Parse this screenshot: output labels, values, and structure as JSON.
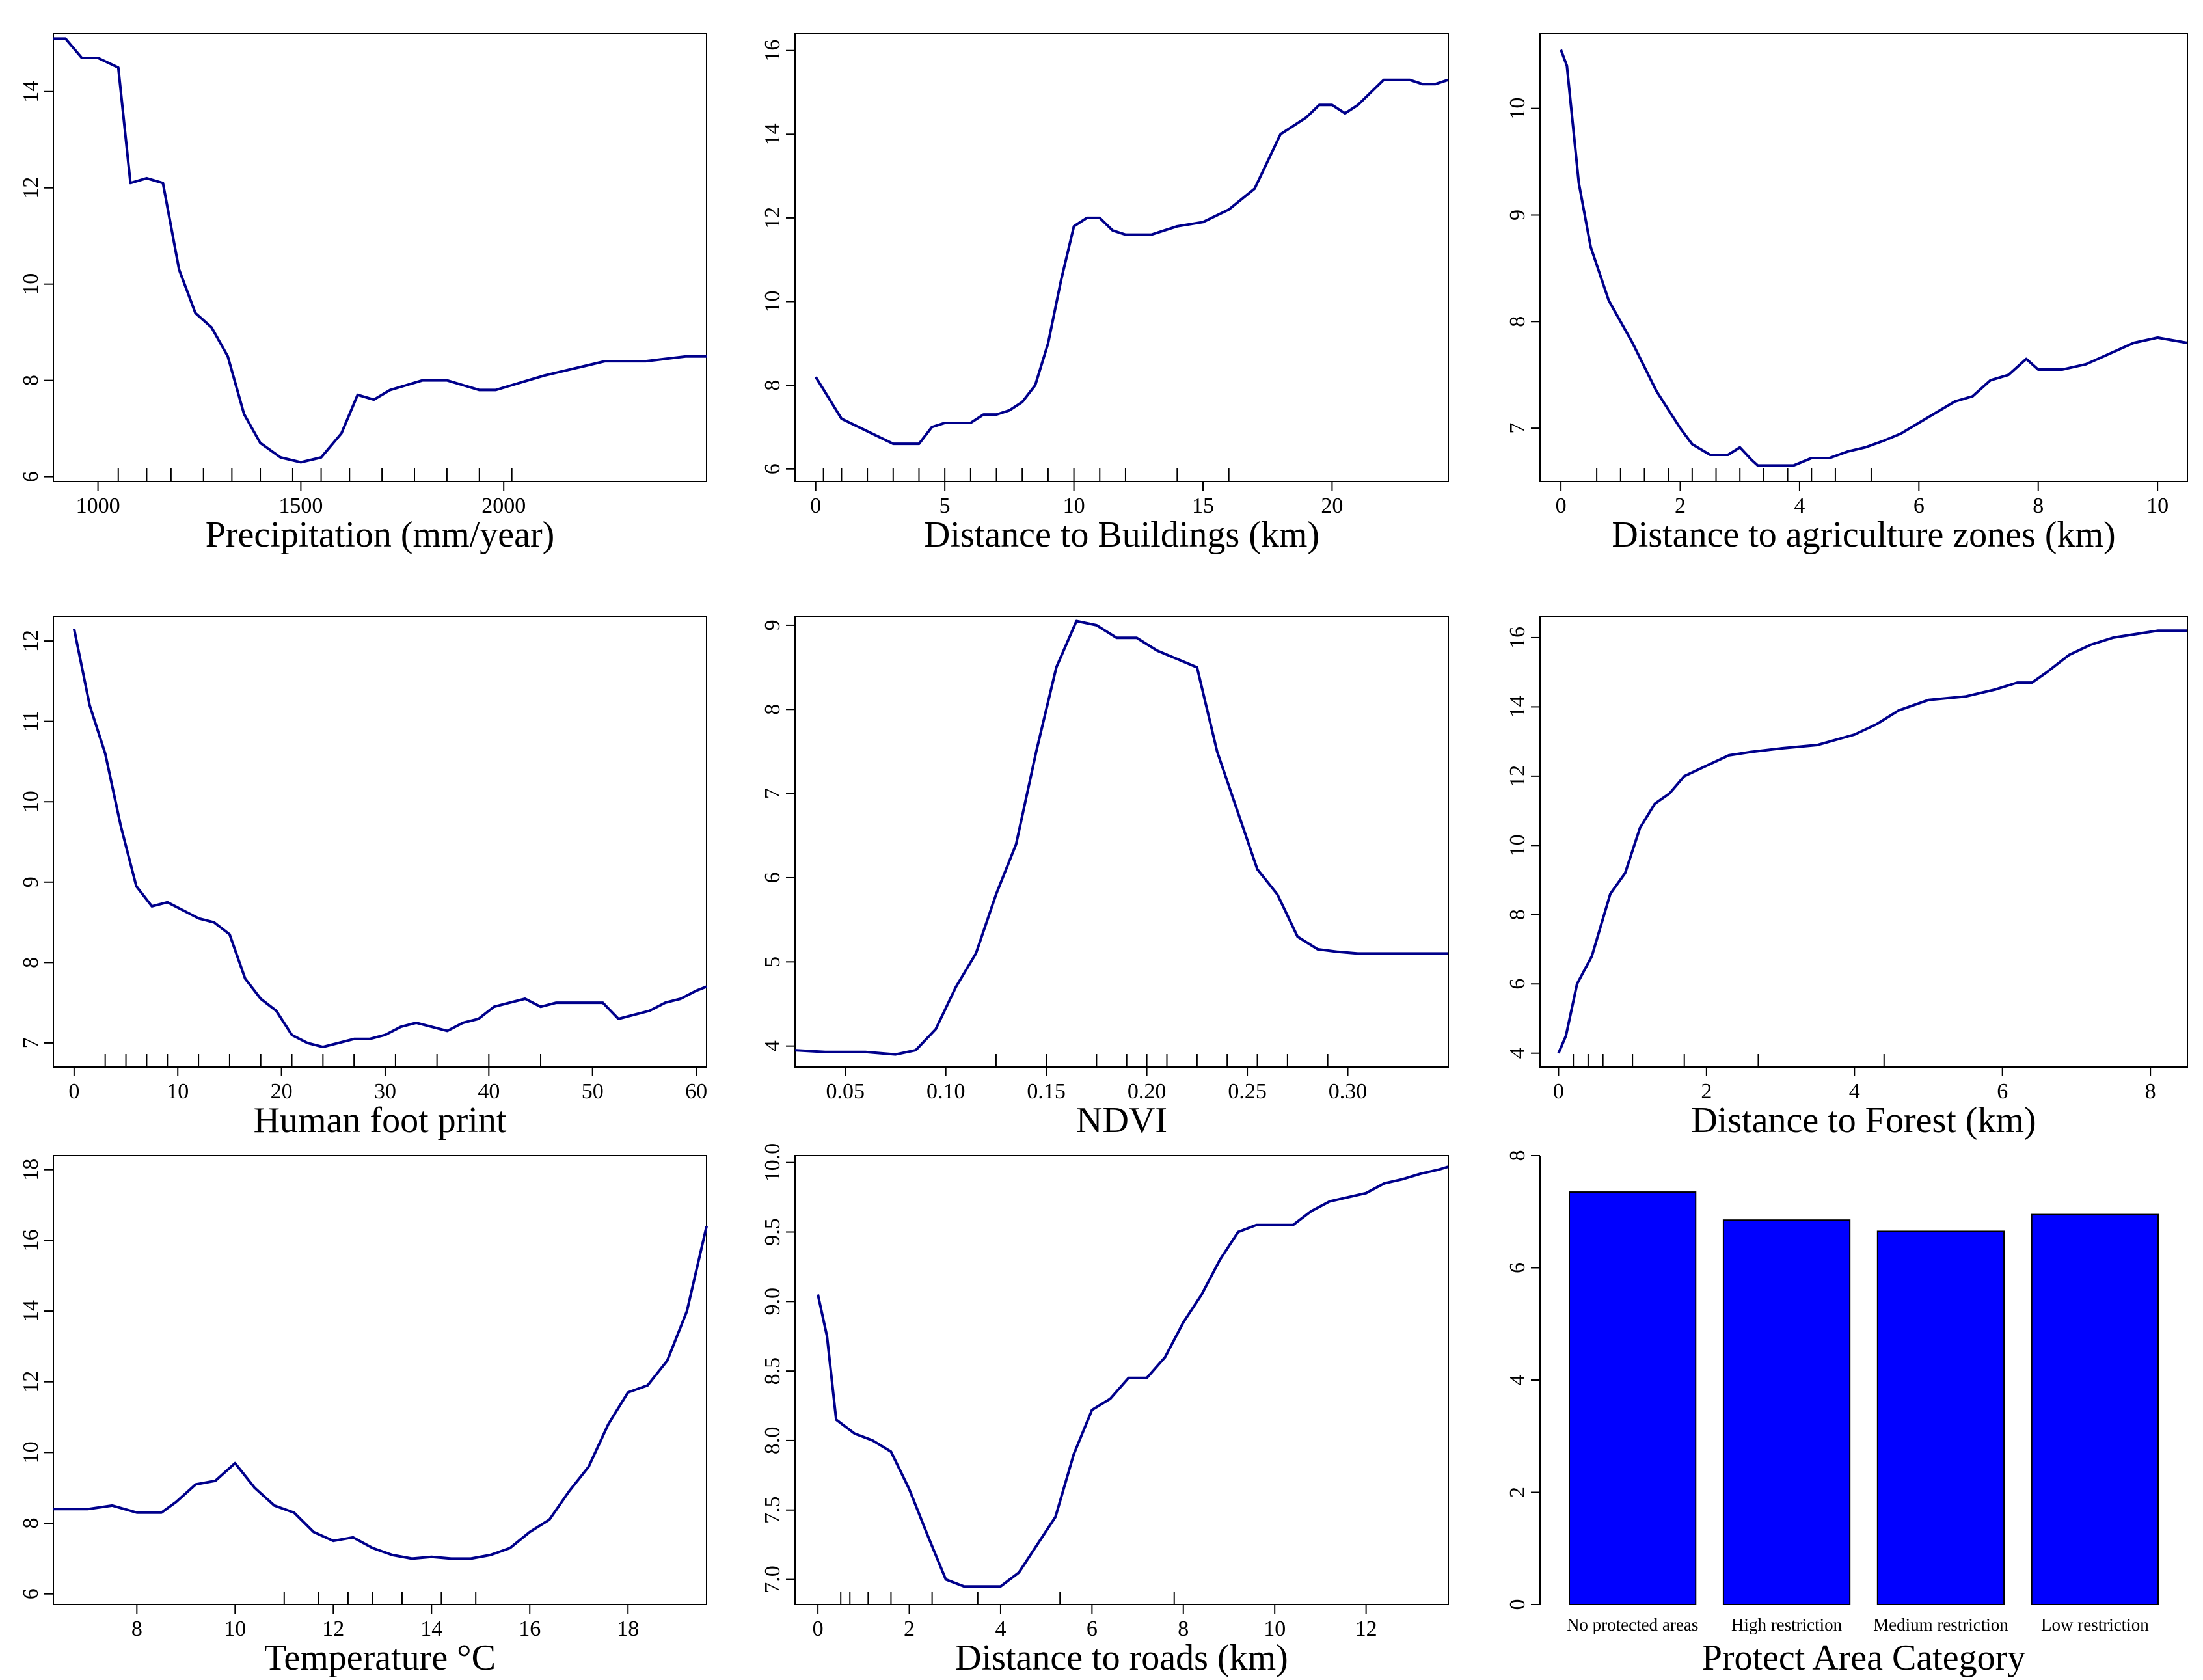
{
  "colors": {
    "line": "#00008B",
    "bar": "#0000FF",
    "axis": "#000000"
  },
  "chart_data": [
    {
      "type": "line",
      "xlabel": "Precipitation (mm/year)",
      "xlim": [
        890,
        2500
      ],
      "ylim": [
        5.9,
        15.2
      ],
      "xticks": [
        1000,
        1500,
        2000
      ],
      "yticks": [
        6,
        8,
        10,
        12,
        14
      ],
      "rug": [
        1050,
        1120,
        1180,
        1260,
        1330,
        1400,
        1480,
        1550,
        1620,
        1700,
        1780,
        1860,
        1940,
        2020
      ],
      "x": [
        890,
        920,
        960,
        1000,
        1050,
        1080,
        1120,
        1160,
        1200,
        1240,
        1280,
        1320,
        1360,
        1400,
        1450,
        1500,
        1550,
        1600,
        1640,
        1680,
        1720,
        1760,
        1800,
        1860,
        1900,
        1940,
        1980,
        2020,
        2060,
        2100,
        2150,
        2200,
        2250,
        2300,
        2350,
        2400,
        2450,
        2500
      ],
      "y": [
        15.1,
        15.1,
        14.7,
        14.7,
        14.5,
        12.1,
        12.2,
        12.1,
        10.3,
        9.4,
        9.1,
        8.5,
        7.3,
        6.7,
        6.4,
        6.3,
        6.4,
        6.9,
        7.7,
        7.6,
        7.8,
        7.9,
        8.0,
        8.0,
        7.9,
        7.8,
        7.8,
        7.9,
        8.0,
        8.1,
        8.2,
        8.3,
        8.4,
        8.4,
        8.4,
        8.45,
        8.5,
        8.5
      ]
    },
    {
      "type": "line",
      "xlabel": "Distance to Buildings (km)",
      "xlim": [
        -0.8,
        24.5
      ],
      "ylim": [
        5.7,
        16.4
      ],
      "xticks": [
        0,
        5,
        10,
        15,
        20
      ],
      "yticks": [
        6,
        8,
        10,
        12,
        14,
        16
      ],
      "rug": [
        0.3,
        1,
        2,
        3,
        4,
        5,
        6,
        7,
        8,
        9,
        10,
        11,
        12,
        14,
        16
      ],
      "x": [
        0,
        0.5,
        1,
        2,
        3,
        4,
        4.5,
        5,
        5.5,
        6,
        6.5,
        7,
        7.5,
        8,
        8.5,
        9,
        9.5,
        10,
        10.5,
        11,
        11.5,
        12,
        12.5,
        13,
        14,
        15,
        16,
        17,
        18,
        19,
        19.5,
        20,
        20.5,
        21,
        21.5,
        22,
        22.5,
        23,
        23.5,
        24,
        24.5
      ],
      "y": [
        8.2,
        7.7,
        7.2,
        6.9,
        6.6,
        6.6,
        7.0,
        7.1,
        7.1,
        7.1,
        7.3,
        7.3,
        7.4,
        7.6,
        8.0,
        9.0,
        10.5,
        11.8,
        12.0,
        12.0,
        11.7,
        11.6,
        11.6,
        11.6,
        11.8,
        11.9,
        12.2,
        12.7,
        14.0,
        14.4,
        14.7,
        14.7,
        14.5,
        14.7,
        15.0,
        15.3,
        15.3,
        15.3,
        15.2,
        15.2,
        15.3
      ]
    },
    {
      "type": "line",
      "xlabel": "Distance to agriculture zones (km)",
      "xlim": [
        -0.35,
        10.5
      ],
      "ylim": [
        6.5,
        10.7
      ],
      "xticks": [
        0,
        2,
        4,
        6,
        8,
        10
      ],
      "yticks": [
        7,
        8,
        9,
        10
      ],
      "rug": [
        0.6,
        1.0,
        1.4,
        1.8,
        2.2,
        2.6,
        3.0,
        3.4,
        3.8,
        4.2,
        4.6,
        5.2
      ],
      "x": [
        0,
        0.1,
        0.3,
        0.5,
        0.8,
        1.2,
        1.6,
        2.0,
        2.2,
        2.5,
        2.8,
        3.0,
        3.2,
        3.3,
        3.6,
        3.9,
        4.2,
        4.5,
        4.8,
        5.1,
        5.4,
        5.7,
        6.0,
        6.3,
        6.6,
        6.9,
        7.2,
        7.5,
        7.8,
        8.0,
        8.4,
        8.8,
        9.2,
        9.6,
        10.0,
        10.5
      ],
      "y": [
        10.55,
        10.4,
        9.3,
        8.7,
        8.2,
        7.8,
        7.35,
        7.0,
        6.85,
        6.75,
        6.75,
        6.82,
        6.7,
        6.65,
        6.65,
        6.65,
        6.72,
        6.72,
        6.78,
        6.82,
        6.88,
        6.95,
        7.05,
        7.15,
        7.25,
        7.3,
        7.45,
        7.5,
        7.65,
        7.55,
        7.55,
        7.6,
        7.7,
        7.8,
        7.85,
        7.8
      ]
    },
    {
      "type": "line",
      "xlabel": "Human foot print",
      "xlim": [
        -2,
        61
      ],
      "ylim": [
        6.7,
        12.3
      ],
      "xticks": [
        0,
        10,
        20,
        30,
        40,
        50,
        60
      ],
      "yticks": [
        7,
        8,
        9,
        10,
        11,
        12
      ],
      "rug": [
        3,
        5,
        7,
        9,
        12,
        15,
        18,
        21,
        24,
        27,
        31,
        35,
        40,
        45
      ],
      "x": [
        0,
        1.5,
        3,
        4.5,
        6,
        7.5,
        9,
        10.5,
        12,
        13.5,
        15,
        16.5,
        18,
        19.5,
        21,
        22.5,
        24,
        25.5,
        27,
        28.5,
        30,
        31.5,
        33,
        34.5,
        36,
        37.5,
        39,
        40.5,
        42,
        43.5,
        45,
        46.5,
        48,
        49.5,
        51,
        52.5,
        54,
        55.5,
        57,
        58.5,
        60,
        61
      ],
      "y": [
        12.15,
        11.2,
        10.6,
        9.7,
        8.95,
        8.7,
        8.75,
        8.65,
        8.55,
        8.5,
        8.35,
        7.8,
        7.55,
        7.4,
        7.1,
        7.0,
        6.95,
        7.0,
        7.05,
        7.05,
        7.1,
        7.2,
        7.25,
        7.2,
        7.15,
        7.25,
        7.3,
        7.45,
        7.5,
        7.55,
        7.45,
        7.5,
        7.5,
        7.5,
        7.5,
        7.3,
        7.35,
        7.4,
        7.5,
        7.55,
        7.65,
        7.7
      ]
    },
    {
      "type": "line",
      "xlabel": "NDVI",
      "xlim": [
        0.025,
        0.35
      ],
      "ylim": [
        3.75,
        9.1
      ],
      "xticks": [
        0.05,
        0.1,
        0.15,
        0.2,
        0.25,
        0.3
      ],
      "yticks": [
        4,
        5,
        6,
        7,
        8,
        9
      ],
      "rug": [
        0.125,
        0.15,
        0.175,
        0.19,
        0.2,
        0.21,
        0.225,
        0.24,
        0.255,
        0.27,
        0.29
      ],
      "x": [
        0.025,
        0.04,
        0.06,
        0.075,
        0.085,
        0.095,
        0.105,
        0.115,
        0.125,
        0.135,
        0.145,
        0.155,
        0.165,
        0.175,
        0.185,
        0.195,
        0.205,
        0.215,
        0.225,
        0.235,
        0.245,
        0.255,
        0.265,
        0.275,
        0.285,
        0.295,
        0.305,
        0.315,
        0.325,
        0.335,
        0.35
      ],
      "y": [
        3.95,
        3.93,
        3.93,
        3.9,
        3.95,
        4.2,
        4.7,
        5.1,
        5.8,
        6.4,
        7.5,
        8.5,
        9.05,
        9.0,
        8.85,
        8.85,
        8.7,
        8.6,
        8.5,
        7.5,
        6.8,
        6.1,
        5.8,
        5.3,
        5.15,
        5.12,
        5.1,
        5.1,
        5.1,
        5.1,
        5.1
      ]
    },
    {
      "type": "line",
      "xlabel": "Distance to Forest (km)",
      "xlim": [
        -0.25,
        8.5
      ],
      "ylim": [
        3.6,
        16.6
      ],
      "xticks": [
        0,
        2,
        4,
        6,
        8
      ],
      "yticks": [
        4,
        6,
        8,
        10,
        12,
        14,
        16
      ],
      "rug": [
        0.2,
        0.4,
        0.6,
        1.0,
        1.7,
        2.7,
        4.4
      ],
      "x": [
        0,
        0.1,
        0.25,
        0.45,
        0.7,
        0.9,
        1.1,
        1.3,
        1.5,
        1.7,
        1.9,
        2.1,
        2.3,
        2.6,
        3.0,
        3.5,
        4.0,
        4.3,
        4.6,
        5.0,
        5.5,
        5.9,
        6.2,
        6.4,
        6.6,
        6.9,
        7.2,
        7.5,
        7.8,
        8.1,
        8.5
      ],
      "y": [
        4.0,
        4.5,
        6.0,
        6.8,
        8.6,
        9.2,
        10.5,
        11.2,
        11.5,
        12.0,
        12.2,
        12.4,
        12.6,
        12.7,
        12.8,
        12.9,
        13.2,
        13.5,
        13.9,
        14.2,
        14.3,
        14.5,
        14.7,
        14.7,
        15.0,
        15.5,
        15.8,
        16.0,
        16.1,
        16.2,
        16.2
      ]
    },
    {
      "type": "line",
      "xlabel": "Temperature °C",
      "xlim": [
        6.3,
        19.6
      ],
      "ylim": [
        5.7,
        18.4
      ],
      "xticks": [
        8,
        10,
        12,
        14,
        16,
        18
      ],
      "yticks": [
        6,
        8,
        10,
        12,
        14,
        16,
        18
      ],
      "rug": [
        11.0,
        11.7,
        12.3,
        12.8,
        13.4,
        14.2,
        14.9
      ],
      "x": [
        6.3,
        7.0,
        7.5,
        8.0,
        8.5,
        8.8,
        9.2,
        9.6,
        10.0,
        10.4,
        10.8,
        11.2,
        11.6,
        12.0,
        12.4,
        12.8,
        13.2,
        13.6,
        14.0,
        14.4,
        14.8,
        15.2,
        15.6,
        16.0,
        16.4,
        16.8,
        17.2,
        17.6,
        18.0,
        18.4,
        18.8,
        19.2,
        19.6
      ],
      "y": [
        8.4,
        8.4,
        8.5,
        8.3,
        8.3,
        8.6,
        9.1,
        9.2,
        9.7,
        9.0,
        8.5,
        8.3,
        7.75,
        7.5,
        7.6,
        7.3,
        7.1,
        7.0,
        7.05,
        7.0,
        7.0,
        7.1,
        7.3,
        7.75,
        8.1,
        8.9,
        9.6,
        10.8,
        11.7,
        11.9,
        12.6,
        14.0,
        16.4
      ]
    },
    {
      "type": "line",
      "xlabel": "Distance to roads (km)",
      "xlim": [
        -0.5,
        13.8
      ],
      "ylim": [
        6.82,
        10.05
      ],
      "xticks": [
        0,
        2,
        4,
        6,
        8,
        10,
        12
      ],
      "yticks": [
        7.0,
        7.5,
        8.0,
        8.5,
        9.0,
        9.5,
        10.0
      ],
      "rug": [
        0.5,
        0.7,
        1.1,
        1.6,
        2.5,
        3.5,
        5.3,
        7.8
      ],
      "x": [
        0,
        0.2,
        0.4,
        0.8,
        1.2,
        1.6,
        2.0,
        2.4,
        2.8,
        3.2,
        3.6,
        4.0,
        4.4,
        4.8,
        5.2,
        5.6,
        6.0,
        6.4,
        6.8,
        7.2,
        7.6,
        8.0,
        8.4,
        8.8,
        9.2,
        9.6,
        10.0,
        10.4,
        10.8,
        11.2,
        11.6,
        12.0,
        12.4,
        12.8,
        13.2,
        13.6,
        13.8
      ],
      "y": [
        9.05,
        8.75,
        8.15,
        8.05,
        8.0,
        7.92,
        7.65,
        7.32,
        7.0,
        6.95,
        6.95,
        6.95,
        7.05,
        7.25,
        7.45,
        7.9,
        8.22,
        8.3,
        8.45,
        8.45,
        8.6,
        8.85,
        9.05,
        9.3,
        9.5,
        9.55,
        9.55,
        9.55,
        9.65,
        9.72,
        9.75,
        9.78,
        9.85,
        9.88,
        9.92,
        9.95,
        9.97
      ]
    },
    {
      "type": "bar",
      "xlabel": "Protect Area Category",
      "ylim": [
        0,
        8
      ],
      "yticks": [
        0,
        2,
        4,
        6,
        8
      ],
      "categories": [
        "No protected areas",
        "High restriction",
        "Medium restriction",
        "Low restriction"
      ],
      "values": [
        7.35,
        6.85,
        6.65,
        6.95
      ]
    }
  ]
}
